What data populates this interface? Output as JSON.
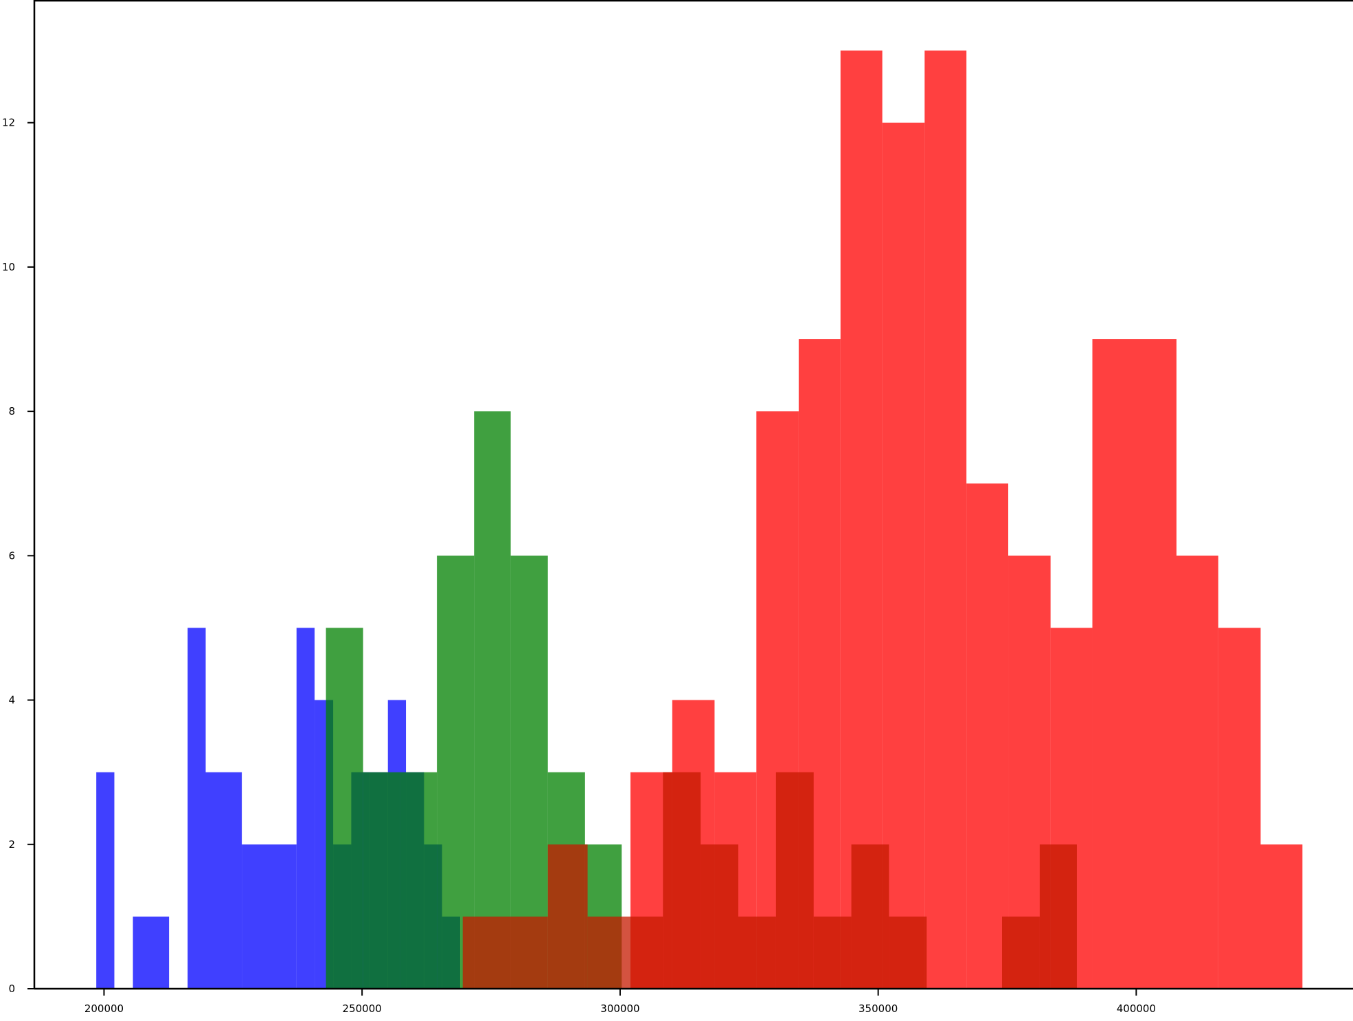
{
  "chart_data": {
    "type": "bar",
    "title": "",
    "xlabel": "",
    "ylabel": "",
    "xlim": [
      186500,
      442000
    ],
    "ylim": [
      0,
      13.7
    ],
    "grid": false,
    "x_ticks": [
      200000,
      250000,
      300000,
      350000,
      400000
    ],
    "x_tick_labels": [
      "200000",
      "250000",
      "300000",
      "350000",
      "400000"
    ],
    "y_ticks": [
      0,
      2,
      4,
      6,
      8,
      10,
      12
    ],
    "y_tick_labels": [
      "0",
      "2",
      "4",
      "6",
      "8",
      "10",
      "12"
    ],
    "series": [
      {
        "color": "#0000ff",
        "opacity": 0.75,
        "bins": [
          {
            "x0": 198500,
            "x1": 202000,
            "count": 3
          },
          {
            "x0": 202000,
            "x1": 205600,
            "count": 0
          },
          {
            "x0": 205600,
            "x1": 212600,
            "count": 1
          },
          {
            "x0": 212600,
            "x1": 216200,
            "count": 0
          },
          {
            "x0": 216200,
            "x1": 219700,
            "count": 5
          },
          {
            "x0": 219700,
            "x1": 226700,
            "count": 3
          },
          {
            "x0": 226700,
            "x1": 237300,
            "count": 2
          },
          {
            "x0": 237300,
            "x1": 240800,
            "count": 5
          },
          {
            "x0": 240800,
            "x1": 244400,
            "count": 4
          },
          {
            "x0": 244400,
            "x1": 247900,
            "count": 2
          },
          {
            "x0": 247900,
            "x1": 251400,
            "count": 3
          },
          {
            "x0": 251400,
            "x1": 255000,
            "count": 3
          },
          {
            "x0": 255000,
            "x1": 258500,
            "count": 4
          },
          {
            "x0": 258500,
            "x1": 262000,
            "count": 3
          },
          {
            "x0": 262000,
            "x1": 265500,
            "count": 2
          },
          {
            "x0": 265500,
            "x1": 269000,
            "count": 1
          }
        ]
      },
      {
        "color": "#008000",
        "opacity": 0.75,
        "bins": [
          {
            "x0": 243000,
            "x1": 250200,
            "count": 5
          },
          {
            "x0": 250200,
            "x1": 257300,
            "count": 3
          },
          {
            "x0": 257300,
            "x1": 264500,
            "count": 3
          },
          {
            "x0": 264500,
            "x1": 271700,
            "count": 6
          },
          {
            "x0": 271700,
            "x1": 278800,
            "count": 8
          },
          {
            "x0": 278800,
            "x1": 286000,
            "count": 6
          },
          {
            "x0": 286000,
            "x1": 293200,
            "count": 3
          },
          {
            "x0": 293200,
            "x1": 300300,
            "count": 2
          }
        ]
      },
      {
        "color": "#ff0000",
        "opacity": 0.75,
        "bins": [
          {
            "x0": 302000,
            "x1": 310100,
            "count": 3
          },
          {
            "x0": 310100,
            "x1": 318300,
            "count": 4
          },
          {
            "x0": 318300,
            "x1": 326400,
            "count": 3
          },
          {
            "x0": 326400,
            "x1": 334600,
            "count": 8
          },
          {
            "x0": 334600,
            "x1": 342700,
            "count": 9
          },
          {
            "x0": 342700,
            "x1": 350800,
            "count": 13
          },
          {
            "x0": 350800,
            "x1": 359000,
            "count": 12
          },
          {
            "x0": 359000,
            "x1": 367100,
            "count": 13
          },
          {
            "x0": 367100,
            "x1": 375200,
            "count": 7
          },
          {
            "x0": 375200,
            "x1": 383400,
            "count": 6
          },
          {
            "x0": 383400,
            "x1": 391500,
            "count": 5
          },
          {
            "x0": 391500,
            "x1": 407800,
            "count": 9
          },
          {
            "x0": 407800,
            "x1": 415900,
            "count": 6
          },
          {
            "x0": 415900,
            "x1": 424100,
            "count": 5
          },
          {
            "x0": 424100,
            "x1": 432200,
            "count": 2
          }
        ]
      },
      {
        "color": "#c61a00",
        "opacity": 0.75,
        "bins": [
          {
            "x0": 269500,
            "x1": 286000,
            "count": 1
          },
          {
            "x0": 286000,
            "x1": 293700,
            "count": 2
          },
          {
            "x0": 293700,
            "x1": 308300,
            "count": 1
          },
          {
            "x0": 308300,
            "x1": 315600,
            "count": 3
          },
          {
            "x0": 315600,
            "x1": 322900,
            "count": 2
          },
          {
            "x0": 322900,
            "x1": 330200,
            "count": 1
          },
          {
            "x0": 330200,
            "x1": 337500,
            "count": 3
          },
          {
            "x0": 337500,
            "x1": 344800,
            "count": 1
          },
          {
            "x0": 344800,
            "x1": 352100,
            "count": 2
          },
          {
            "x0": 352100,
            "x1": 359400,
            "count": 1
          },
          {
            "x0": 374000,
            "x1": 381300,
            "count": 1
          },
          {
            "x0": 381300,
            "x1": 388500,
            "count": 2
          }
        ]
      }
    ]
  }
}
